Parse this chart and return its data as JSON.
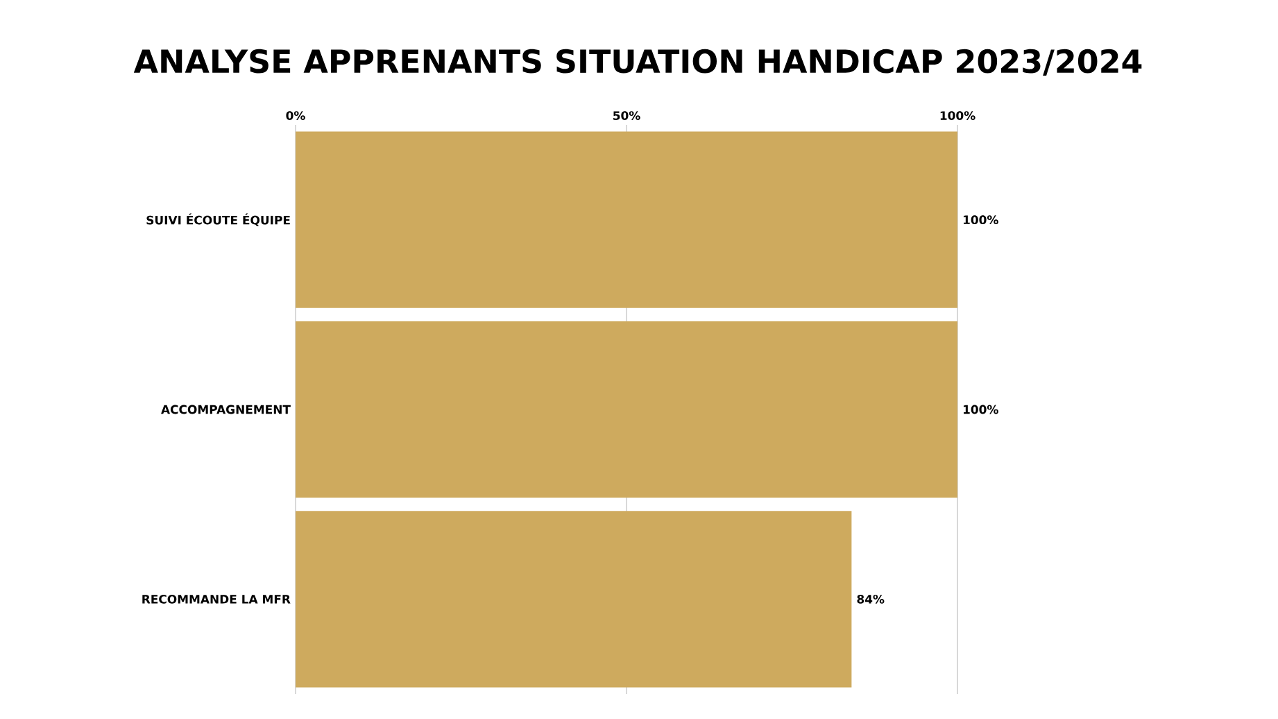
{
  "chart_data": {
    "type": "bar",
    "orientation": "horizontal",
    "title": "ANALYSE APPRENANTS SITUATION HANDICAP 2023/2024",
    "categories": [
      "SUIVI ÉCOUTE ÉQUIPE",
      "ACCOMPAGNEMENT",
      "RECOMMANDE LA MFR"
    ],
    "values": [
      100,
      100,
      84
    ],
    "value_labels": [
      "100%",
      "100%",
      "84%"
    ],
    "color": "#ceaa5e",
    "xlim": [
      0,
      100
    ],
    "xticks": [
      {
        "value": 0,
        "label": "0%"
      },
      {
        "value": 50,
        "label": "50%"
      },
      {
        "value": 100,
        "label": "100%"
      }
    ],
    "grid": "x"
  }
}
